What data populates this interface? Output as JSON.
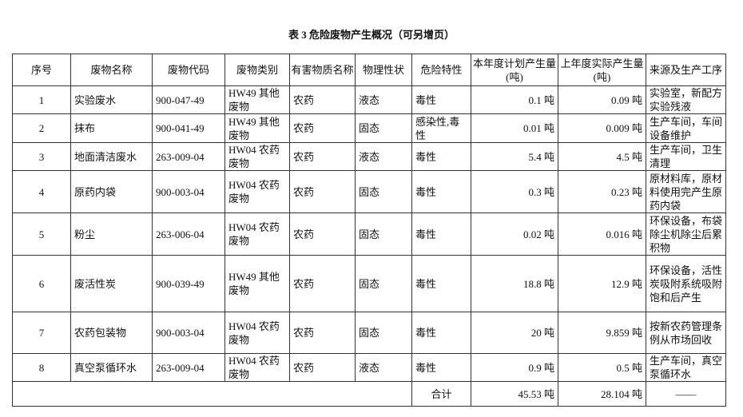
{
  "title": "表 3  危险废物产生概况（可另增页）",
  "headers": [
    "序号",
    "废物名称",
    "废物代码",
    "废物类别",
    "有害物质名称",
    "物理性状",
    "危险特性",
    "本年度计划产生量(吨)",
    "上年度实际产生量(吨)",
    "来源及生产工序"
  ],
  "rows": [
    {
      "no": "1",
      "name": "实验废水",
      "code": "900-047-49",
      "category": "HW49 其他废物",
      "substance": "农药",
      "state": "液态",
      "hazard": "毒性",
      "planned": "0.1 吨",
      "actual": "0.09 吨",
      "source": "实验室，新配方实验残液"
    },
    {
      "no": "2",
      "name": "抹布",
      "code": "900-041-49",
      "category": "HW49 其他废物",
      "substance": "农药",
      "state": "固态",
      "hazard": "感染性,毒性",
      "planned": "0.01 吨",
      "actual": "0.009 吨",
      "source": "生产车间，车间设备维护"
    },
    {
      "no": "3",
      "name": "地面清洁废水",
      "code": "263-009-04",
      "category": "HW04 农药废物",
      "substance": "农药",
      "state": "液态",
      "hazard": "毒性",
      "planned": "5.4 吨",
      "actual": "4.5 吨",
      "source": "生产车间，卫生清理"
    },
    {
      "no": "4",
      "name": "原药内袋",
      "code": "900-003-04",
      "category": "HW04 农药废物",
      "substance": "农药",
      "state": "固态",
      "hazard": "毒性",
      "planned": "0.3 吨",
      "actual": "0.23 吨",
      "source": "原材料库，原材料使用完产生原药内袋"
    },
    {
      "no": "5",
      "name": "粉尘",
      "code": "263-006-04",
      "category": "HW04 农药废物",
      "substance": "农药",
      "state": "固态",
      "hazard": "毒性",
      "planned": "0.02 吨",
      "actual": "0.016 吨",
      "source": "环保设备，布袋除尘机除尘后累积物"
    },
    {
      "no": "6",
      "name": "废活性炭",
      "code": "900-039-49",
      "category": "HW49 其他废物",
      "substance": "农药",
      "state": "固态",
      "hazard": "毒性",
      "planned": "18.8 吨",
      "actual": "12.9 吨",
      "source": "环保设备，活性炭吸附系统吸附饱和后产生"
    },
    {
      "no": "7",
      "name": "农药包装物",
      "code": "900-003-04",
      "category": "HW04 农药废物",
      "substance": "农药",
      "state": "固态",
      "hazard": "毒性",
      "planned": "20 吨",
      "actual": "9.859 吨",
      "source": "按新农药管理条例从市场回收"
    },
    {
      "no": "8",
      "name": "真空泵循环水",
      "code": "263-009-04",
      "category": "HW04 农药废物",
      "substance": "农药",
      "state": "液态",
      "hazard": "毒性",
      "planned": "0.9 吨",
      "actual": "0.5 吨",
      "source": "生产车间，真空泵循环水"
    }
  ],
  "total": {
    "label": "合计",
    "planned": "45.53 吨",
    "actual": "28.104 吨",
    "source": "——"
  }
}
